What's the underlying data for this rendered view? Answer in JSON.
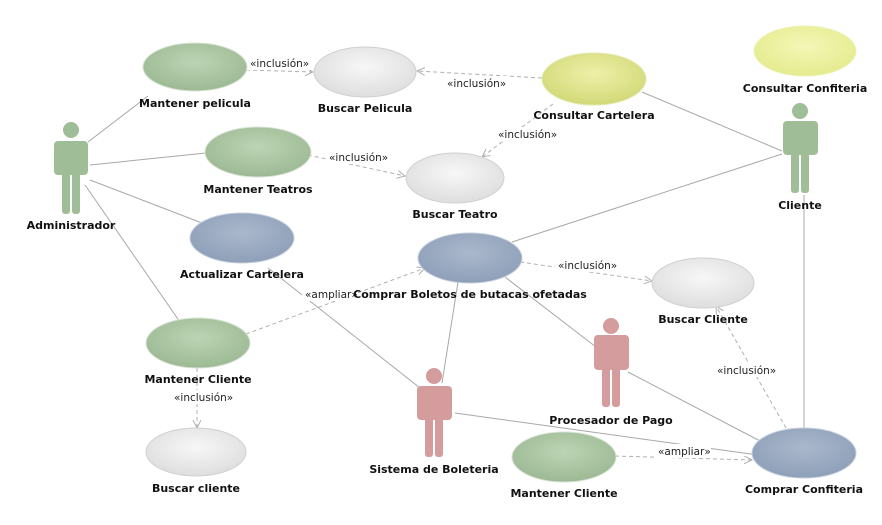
{
  "colors": {
    "green_uc": "#a9c4a1",
    "grey_uc": "#e6e6e6",
    "blue_uc": "#98a8bf",
    "yellow_uc": "#dde38c",
    "yellow2_uc": "#e9ef9d",
    "actor_green": "#9fbd96",
    "actor_red": "#d49c9c",
    "line": "#a8a8a8"
  },
  "actors": {
    "administrador": "Administrador",
    "cliente": "Cliente",
    "procesador": "Procesador de Pago",
    "sistema": "Sistema de Boleteria"
  },
  "usecases": {
    "mantener_pelicula": "Mantener pelicula",
    "buscar_pelicula": "Buscar Pelicula",
    "consultar_cartelera": "Consultar Cartelera",
    "consultar_confiteria": "Consultar Confiteria",
    "mantener_teatros": "Mantener Teatros",
    "buscar_teatro": "Buscar Teatro",
    "actualizar_cartelera": "Actualizar Cartelera",
    "comprar_boletos": "Comprar Boletos de butacas ofetadas",
    "buscar_cliente_right": "Buscar Cliente",
    "mantener_cliente_left": "Mantener Cliente",
    "buscar_cliente_left": "Buscar cliente",
    "mantener_cliente_bottom": "Mantener Cliente",
    "comprar_confiteria": "Comprar Confiteria"
  },
  "stereotypes": {
    "inclusion": "«inclusión»",
    "ampliar": "«ampliar»"
  }
}
